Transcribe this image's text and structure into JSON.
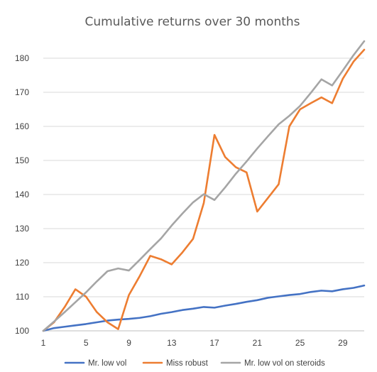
{
  "chart_data": {
    "type": "line",
    "title": "Cumulative returns over 30 months",
    "xlabel": "",
    "ylabel": "",
    "x": [
      1,
      2,
      3,
      4,
      5,
      6,
      7,
      8,
      9,
      10,
      11,
      12,
      13,
      14,
      15,
      16,
      17,
      18,
      19,
      20,
      21,
      22,
      23,
      24,
      25,
      26,
      27,
      28,
      29,
      30,
      31
    ],
    "x_tick_labels": [
      "1",
      "5",
      "9",
      "13",
      "17",
      "21",
      "25",
      "29"
    ],
    "x_tick_values": [
      1,
      5,
      9,
      13,
      17,
      21,
      25,
      29
    ],
    "ylim": [
      100,
      185
    ],
    "y_ticks": [
      100,
      110,
      120,
      130,
      140,
      150,
      160,
      170,
      180
    ],
    "grid": "horizontal",
    "legend_position": "bottom",
    "series": [
      {
        "name": "Mr. low vol",
        "color": "#4472c4",
        "values": [
          100,
          100.8,
          101.2,
          101.6,
          102.0,
          102.5,
          103.0,
          103.3,
          103.5,
          103.8,
          104.3,
          105.0,
          105.5,
          106.1,
          106.5,
          107.0,
          106.8,
          107.4,
          107.9,
          108.5,
          109.0,
          109.7,
          110.1,
          110.5,
          110.8,
          111.4,
          111.8,
          111.6,
          112.2,
          112.6,
          113.3
        ]
      },
      {
        "name": "Miss robust",
        "color": "#ed7d31",
        "values": [
          100,
          102.5,
          107,
          112.2,
          110,
          105.5,
          102.5,
          100.5,
          110.5,
          116,
          122,
          121,
          119.5,
          123,
          127,
          137.5,
          157.5,
          151,
          148,
          146.5,
          135,
          139,
          143,
          160,
          165,
          166.8,
          168.5,
          166.8,
          174,
          179,
          182.5
        ]
      },
      {
        "name": "Mr. low vol on steroids",
        "color": "#a5a5a5",
        "values": [
          100,
          102.7,
          105.5,
          108.4,
          111.3,
          114.5,
          117.5,
          118.3,
          117.7,
          120.8,
          124.0,
          127.1,
          130.9,
          134.4,
          137.7,
          140.1,
          138.4,
          142.1,
          146.1,
          149.7,
          153.5,
          157.1,
          160.6,
          163.1,
          166.0,
          169.8,
          173.8,
          172.0,
          176.4,
          180.9,
          185.0
        ]
      }
    ]
  }
}
